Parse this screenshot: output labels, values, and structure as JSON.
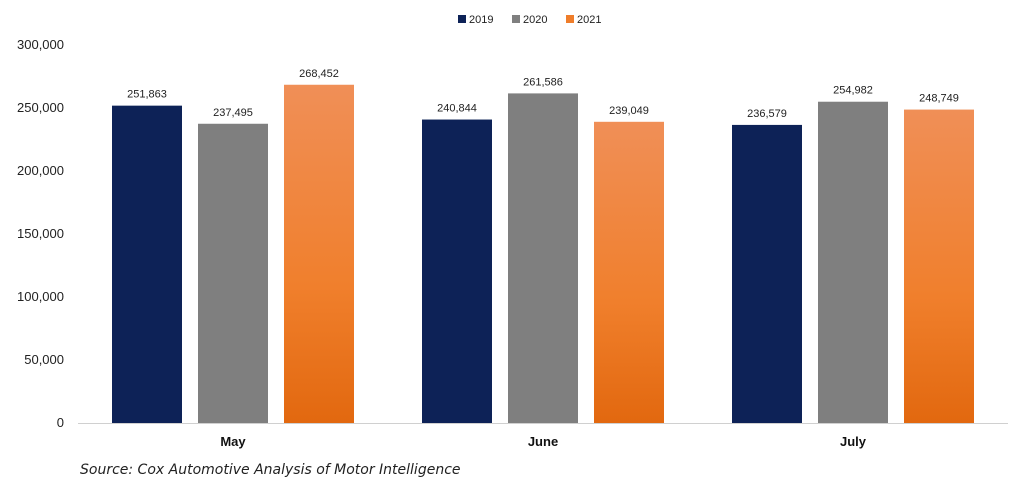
{
  "chart_data": {
    "type": "bar",
    "categories": [
      "May",
      "June",
      "July"
    ],
    "series": [
      {
        "name": "2019",
        "values": [
          251863,
          240844,
          236579
        ],
        "color": "#0d2257"
      },
      {
        "name": "2020",
        "values": [
          237495,
          261586,
          254982
        ],
        "color": "#7f7f7f"
      },
      {
        "name": "2021",
        "values": [
          268452,
          239049,
          248749
        ],
        "color": "#ef7d2a"
      }
    ],
    "data_labels": [
      [
        "251,863",
        "240,844",
        "236,579"
      ],
      [
        "237,495",
        "261,586",
        "254,982"
      ],
      [
        "268,452",
        "239,049",
        "248,749"
      ]
    ],
    "yticks": [
      0,
      50000,
      100000,
      150000,
      200000,
      250000,
      300000
    ],
    "ytick_labels": [
      "0",
      "50,000",
      "100,000",
      "150,000",
      "200,000",
      "250,000",
      "300,000"
    ],
    "ylim": [
      0,
      300000
    ],
    "title": "",
    "xlabel": "",
    "ylabel": "",
    "legend_position": "top-center",
    "grid": false
  },
  "source_note": "Source: Cox Automotive Analysis of Motor Intelligence"
}
